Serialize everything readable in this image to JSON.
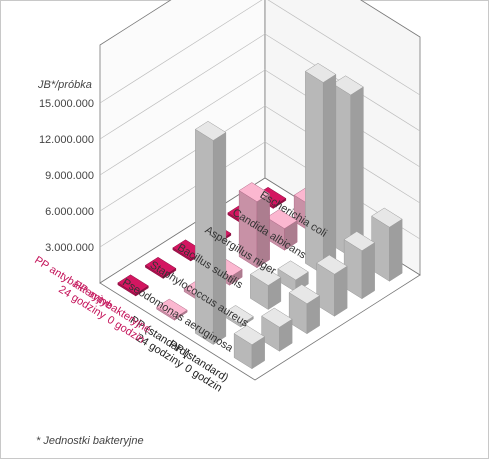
{
  "chart_data": {
    "type": "bar3d",
    "ylabel": "JB*/próbka",
    "yticks": [
      "3.000.000",
      "6.000.000",
      "9.000.000",
      "12.000.000",
      "15.000.000"
    ],
    "ytick_values": [
      3000000,
      6000000,
      9000000,
      12000000,
      15000000
    ],
    "ylim": [
      0,
      15000000
    ],
    "footnote": "* Jednostki bakteryjne",
    "grid": true,
    "samples": [
      {
        "label_lines": [
          "PP (standard)",
          "0 godzin"
        ],
        "color": "#222222"
      },
      {
        "label_lines": [
          "PP (standard)",
          "24 godziny"
        ],
        "color": "#222222"
      },
      {
        "label_lines": [
          "PP antybakteryjne",
          "0 godzin"
        ],
        "color": "#c4145a"
      },
      {
        "label_lines": [
          "PP antybakteryjne",
          "24 godziny"
        ],
        "color": "#c4145a"
      }
    ],
    "organisms": [
      "Pseodomonas aeruginosa",
      "Staphylococcus aureus",
      "Bacillus subtilis",
      "Aspergillus niger",
      "Candida albicans",
      "Escherichia coli"
    ],
    "values": [
      [
        2000000,
        2000000,
        2500000,
        3500000,
        4000000,
        4500000
      ],
      [
        17000000,
        200000,
        2000000,
        1000000,
        16000000,
        13500000
      ],
      [
        150000,
        250000,
        650000,
        5500000,
        1800000,
        2200000
      ],
      [
        50000,
        50000,
        50000,
        50000,
        50000,
        50000
      ]
    ],
    "colors": {
      "standard_fill": "#d6d6d6",
      "antibacterial_0h_fill": "#e8a9c1",
      "antibacterial_24h_fill": "#c4145a"
    }
  }
}
